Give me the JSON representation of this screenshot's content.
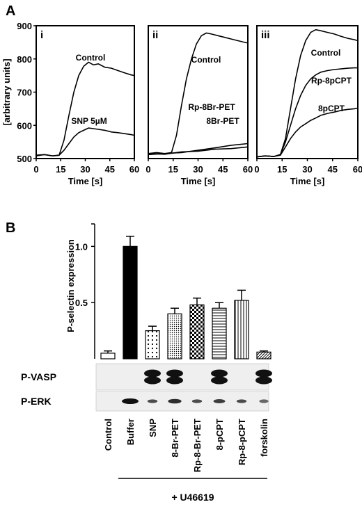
{
  "panel_a_label": "A",
  "panel_b_label": "B",
  "chart_data": [
    {
      "type": "line",
      "panel": "i",
      "ylabel": "[arbitrary units]",
      "xlabel": "Time [s]",
      "xlim": [
        0,
        60
      ],
      "ylim": [
        500,
        900
      ],
      "xticks": [
        "0",
        "15",
        "30",
        "45",
        "60"
      ],
      "yticks": [
        "500",
        "600",
        "700",
        "800",
        "900"
      ],
      "series": [
        {
          "name": "Control",
          "x": [
            0,
            5,
            10,
            14,
            17,
            20,
            23,
            26,
            29,
            32,
            35,
            38,
            42,
            46,
            50,
            54,
            58,
            60
          ],
          "y": [
            508,
            512,
            508,
            510,
            555,
            630,
            700,
            750,
            778,
            790,
            782,
            785,
            775,
            772,
            765,
            758,
            752,
            750
          ]
        },
        {
          "name": "SNP 5µM",
          "x": [
            0,
            5,
            10,
            14,
            17,
            20,
            23,
            26,
            29,
            32,
            35,
            38,
            42,
            46,
            50,
            54,
            58,
            60
          ],
          "y": [
            510,
            512,
            508,
            510,
            525,
            545,
            565,
            578,
            585,
            592,
            590,
            588,
            585,
            580,
            578,
            575,
            572,
            570
          ]
        }
      ]
    },
    {
      "type": "line",
      "panel": "ii",
      "xlabel": "Time [s]",
      "xlim": [
        0,
        60
      ],
      "ylim": [
        500,
        900
      ],
      "xticks": [
        "0",
        "15",
        "30",
        "45",
        "60"
      ],
      "series": [
        {
          "name": "Control",
          "x": [
            0,
            5,
            10,
            14,
            17,
            20,
            23,
            26,
            29,
            32,
            35,
            38,
            42,
            46,
            50,
            54,
            58,
            60
          ],
          "y": [
            515,
            518,
            515,
            518,
            570,
            660,
            740,
            800,
            845,
            870,
            878,
            875,
            870,
            865,
            860,
            855,
            850,
            848
          ]
        },
        {
          "name": "Rp-8Br-PET",
          "x": [
            0,
            10,
            20,
            30,
            40,
            50,
            60
          ],
          "y": [
            512,
            515,
            518,
            525,
            532,
            540,
            545
          ]
        },
        {
          "name": "8Br-PET",
          "x": [
            0,
            10,
            20,
            30,
            40,
            50,
            60
          ],
          "y": [
            515,
            513,
            520,
            522,
            528,
            530,
            535
          ]
        }
      ]
    },
    {
      "type": "line",
      "panel": "iii",
      "xlabel": "Time [s]",
      "xlim": [
        0,
        60
      ],
      "ylim": [
        500,
        900
      ],
      "xticks": [
        "0",
        "15",
        "30",
        "45",
        "60"
      ],
      "series": [
        {
          "name": "Control",
          "x": [
            0,
            5,
            10,
            14,
            17,
            20,
            23,
            26,
            29,
            32,
            35,
            38,
            42,
            46,
            50,
            54,
            58,
            60
          ],
          "y": [
            505,
            508,
            506,
            512,
            560,
            650,
            740,
            810,
            855,
            880,
            888,
            885,
            880,
            875,
            868,
            862,
            858,
            855
          ]
        },
        {
          "name": "Rp-8pCPT",
          "x": [
            0,
            5,
            10,
            14,
            17,
            20,
            23,
            26,
            29,
            32,
            35,
            38,
            42,
            46,
            50,
            54,
            58,
            60
          ],
          "y": [
            505,
            508,
            506,
            512,
            550,
            600,
            650,
            690,
            720,
            740,
            752,
            760,
            765,
            768,
            770,
            772,
            773,
            773
          ]
        },
        {
          "name": "8pCPT",
          "x": [
            0,
            5,
            10,
            14,
            17,
            20,
            23,
            26,
            29,
            32,
            35,
            38,
            42,
            46,
            50,
            54,
            58,
            60
          ],
          "y": [
            505,
            508,
            506,
            510,
            535,
            560,
            580,
            595,
            605,
            615,
            622,
            630,
            636,
            640,
            645,
            648,
            650,
            652
          ]
        }
      ]
    },
    {
      "type": "bar",
      "panel": "B",
      "ylabel": "P-selectin expression",
      "ylim": [
        0,
        1.2
      ],
      "yticks": [
        "0.5",
        "1.0"
      ],
      "categories": [
        "Control",
        "Buffer",
        "SNP",
        "8-Br-PET",
        "Rp-8-Br-PET",
        "8-pCPT",
        "Rp-8-pCPT",
        "forskolin"
      ],
      "values": [
        0.05,
        1.0,
        0.25,
        0.4,
        0.48,
        0.45,
        0.52,
        0.06
      ],
      "errors": [
        0.02,
        0.09,
        0.04,
        0.05,
        0.06,
        0.05,
        0.09,
        0.01
      ],
      "patterns": [
        "white",
        "black",
        "dots",
        "fine-dots",
        "checker",
        "hlines",
        "vlines",
        "diagonal"
      ],
      "blots": [
        {
          "name": "P-VASP",
          "intensity": [
            0,
            0,
            1,
            1,
            0,
            1,
            0,
            1
          ]
        },
        {
          "name": "P-ERK",
          "intensity": [
            0,
            1,
            0.6,
            0.8,
            0.6,
            0.7,
            0.6,
            0.4
          ]
        }
      ],
      "group_label": "+ U46619"
    }
  ]
}
